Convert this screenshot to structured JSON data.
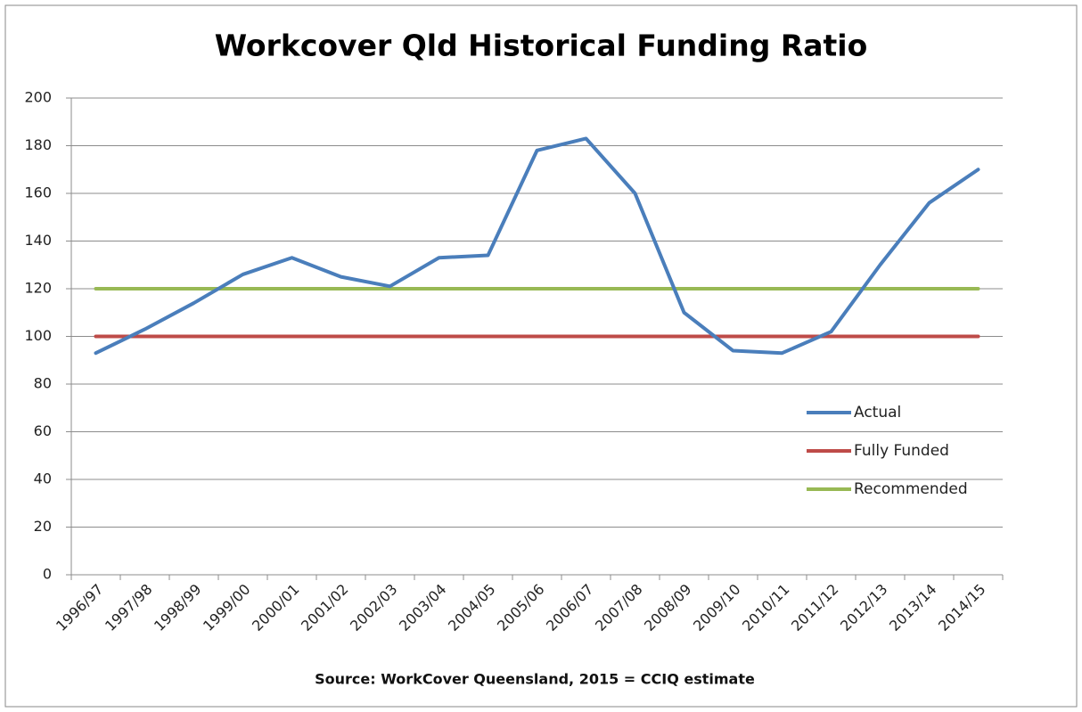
{
  "chart_data": {
    "type": "line",
    "title": "Workcover Qld Historical Funding Ratio",
    "source": "Source: WorkCover Queensland, 2015 = CCIQ estimate",
    "categories": [
      "1996/97",
      "1997/98",
      "1998/99",
      "1999/00",
      "2000/01",
      "2001/02",
      "2002/03",
      "2003/04",
      "2004/05",
      "2005/06",
      "2006/07",
      "2007/08",
      "2008/09",
      "2009/10",
      "2010/11",
      "2011/12",
      "2012/13",
      "2013/14",
      "2014/15"
    ],
    "series": [
      {
        "name": "Actual",
        "color": "#4a7ebb",
        "values": [
          93,
          103,
          114,
          126,
          133,
          125,
          121,
          133,
          134,
          178,
          183,
          160,
          110,
          94,
          93,
          102,
          130,
          156,
          170
        ]
      },
      {
        "name": "Fully Funded",
        "color": "#be4b48",
        "values": [
          100,
          100,
          100,
          100,
          100,
          100,
          100,
          100,
          100,
          100,
          100,
          100,
          100,
          100,
          100,
          100,
          100,
          100,
          100
        ]
      },
      {
        "name": "Recommended",
        "color": "#98b954",
        "values": [
          120,
          120,
          120,
          120,
          120,
          120,
          120,
          120,
          120,
          120,
          120,
          120,
          120,
          120,
          120,
          120,
          120,
          120,
          120
        ]
      }
    ],
    "ylim": [
      0,
      200
    ],
    "yticks": [
      0,
      20,
      40,
      60,
      80,
      100,
      120,
      140,
      160,
      180,
      200
    ],
    "grid": true,
    "legend": "right"
  }
}
